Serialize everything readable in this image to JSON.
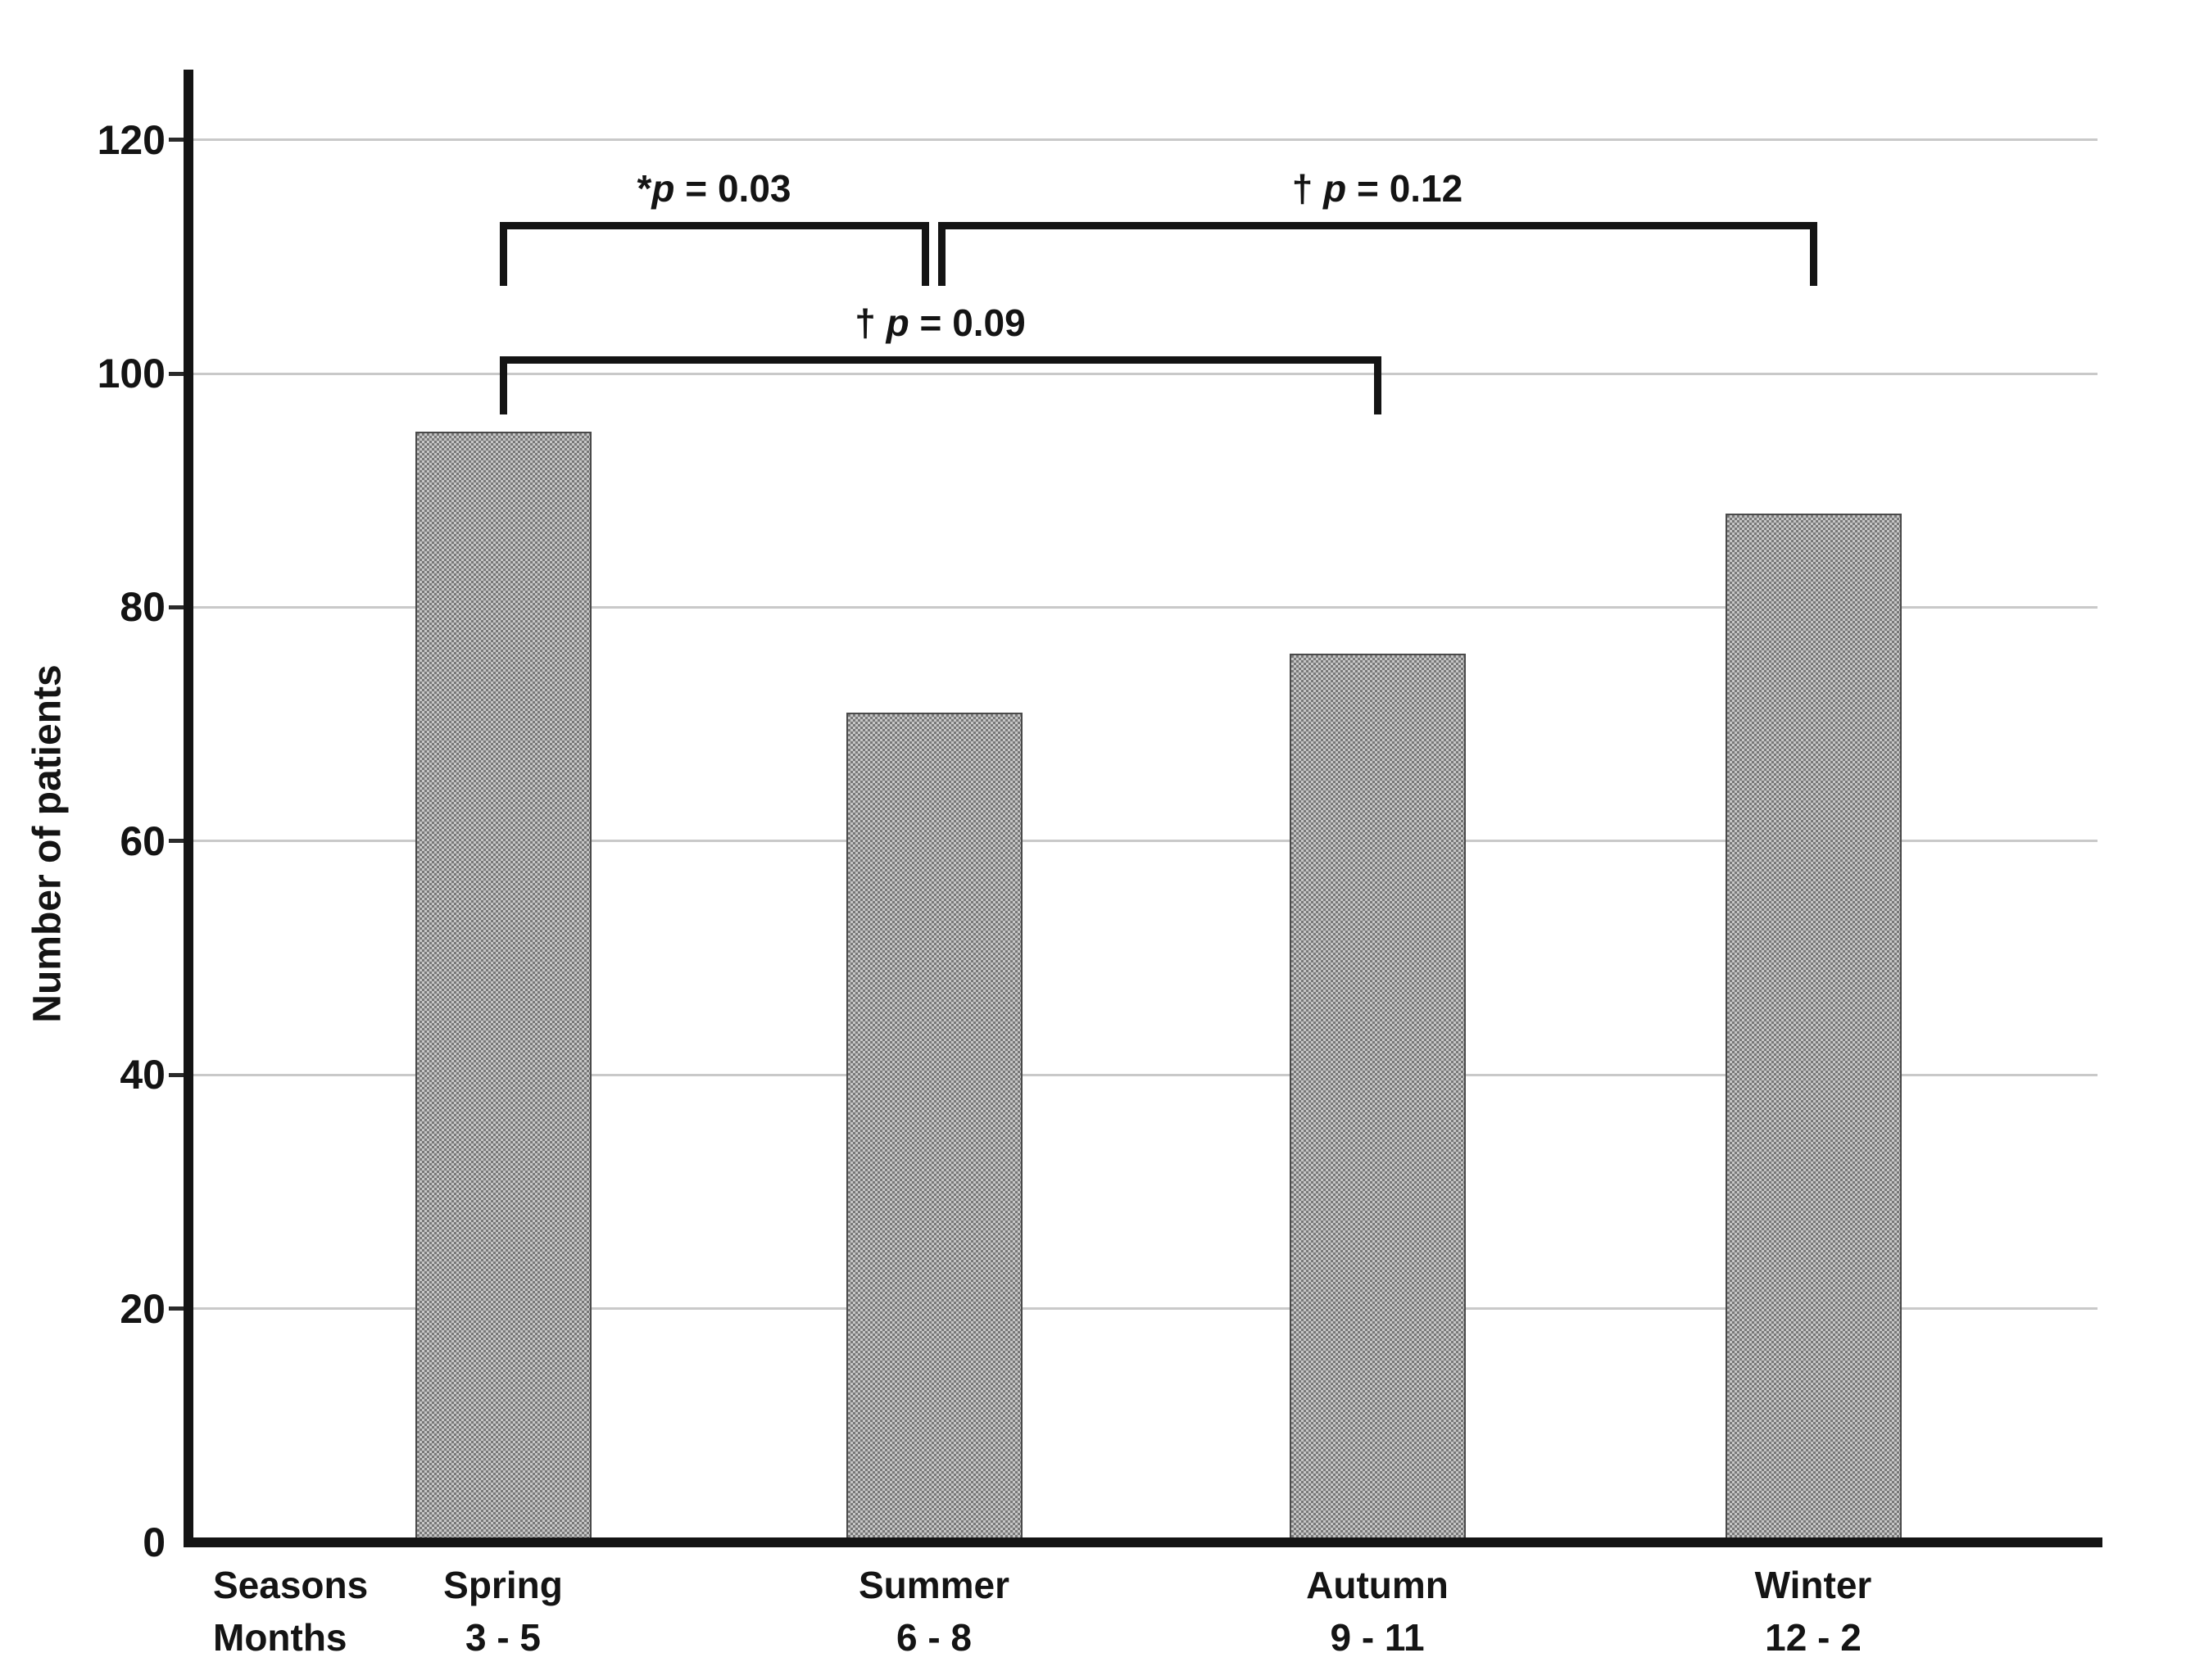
{
  "chart_data": {
    "type": "bar",
    "title": "",
    "ylabel": "Number of patients",
    "x_row_headers": {
      "seasons": "Seasons",
      "months": "Months"
    },
    "categories": [
      "Spring",
      "Summer",
      "Autumn",
      "Winter"
    ],
    "month_ranges": [
      "3 - 5",
      "6 - 8",
      "9 - 11",
      "12 - 2"
    ],
    "values": [
      95,
      71,
      76,
      88
    ],
    "yticks": [
      0,
      20,
      40,
      60,
      80,
      100,
      120
    ],
    "ylim": [
      0,
      126
    ],
    "grid": "horizontal light gray lines at labeled ticks",
    "legend": "none",
    "bar_fill": "gray dotted woven pattern, thin dark outline",
    "colors": {
      "axis": "#141414",
      "gridline": "#c9c9c9",
      "bar_base": "#787878",
      "bar_texture": "#c6c6c6",
      "text": "#141414",
      "background": "#ffffff"
    },
    "annotations": [
      {
        "label": "*p = 0.03",
        "prefix": "*",
        "variable": "p",
        "suffix": " = 0.03",
        "between": [
          "Spring",
          "Summer"
        ],
        "from_index": 0,
        "to_index": 1,
        "y_top": 113,
        "y_leg_bottom": 107.5
      },
      {
        "label": "† p = 0.09",
        "prefix": "† ",
        "variable": "p",
        "suffix": " = 0.09",
        "between": [
          "Spring",
          "Autumn"
        ],
        "from_index": 0,
        "to_index": 2,
        "y_top": 101.5,
        "y_leg_bottom": 96.5
      },
      {
        "label": "† p = 0.12",
        "prefix": "† ",
        "variable": "p",
        "suffix": " = 0.12",
        "between": [
          "Summer",
          "Winter"
        ],
        "from_index": 1,
        "to_index": 3,
        "y_top": 113,
        "y_leg_bottom": 107.5
      }
    ]
  }
}
